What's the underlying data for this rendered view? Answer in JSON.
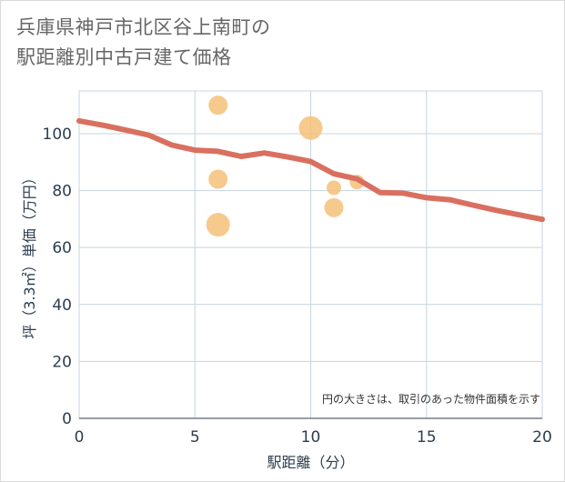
{
  "title_line1": "兵庫県神戸市北区谷上南町の",
  "title_line2": "駅距離別中古戸建て価格",
  "colors": {
    "bubble": "#f5c078",
    "line": "#d9705f",
    "grid": "#c6d4e0",
    "axis_text": "#2c3e50"
  },
  "chart_data": {
    "type": "scatter",
    "title": "兵庫県神戸市北区谷上南町の駅距離別中古戸建て価格",
    "xlabel": "駅距離（分）",
    "ylabel": "坪（3.3㎡）単価（万円）",
    "xlim": [
      0,
      20
    ],
    "ylim": [
      0,
      115
    ],
    "xticks": [
      0,
      5,
      10,
      15,
      20
    ],
    "yticks": [
      0,
      20,
      40,
      60,
      80,
      100
    ],
    "note": "円の大きさは、取引のあった物件面積を示す",
    "bubbles": [
      {
        "x": 6,
        "y": 110,
        "size": 2
      },
      {
        "x": 6,
        "y": 84,
        "size": 2
      },
      {
        "x": 6,
        "y": 68,
        "size": 3
      },
      {
        "x": 10,
        "y": 102,
        "size": 3
      },
      {
        "x": 11,
        "y": 81,
        "size": 1
      },
      {
        "x": 11,
        "y": 74,
        "size": 2
      },
      {
        "x": 12,
        "y": 83,
        "size": 1
      }
    ],
    "trend_line": {
      "x": [
        0,
        1,
        2,
        3,
        4,
        5,
        6,
        7,
        8,
        9,
        10,
        11,
        12,
        13,
        14,
        15,
        16,
        17,
        18,
        19,
        20
      ],
      "y": [
        104.5,
        103,
        101.3,
        99.5,
        96,
        94.2,
        93.8,
        92,
        93.2,
        91.8,
        90.2,
        85.9,
        84.1,
        79.3,
        79.1,
        77.5,
        76.8,
        74.9,
        73.1,
        71.5,
        69.9
      ]
    }
  }
}
